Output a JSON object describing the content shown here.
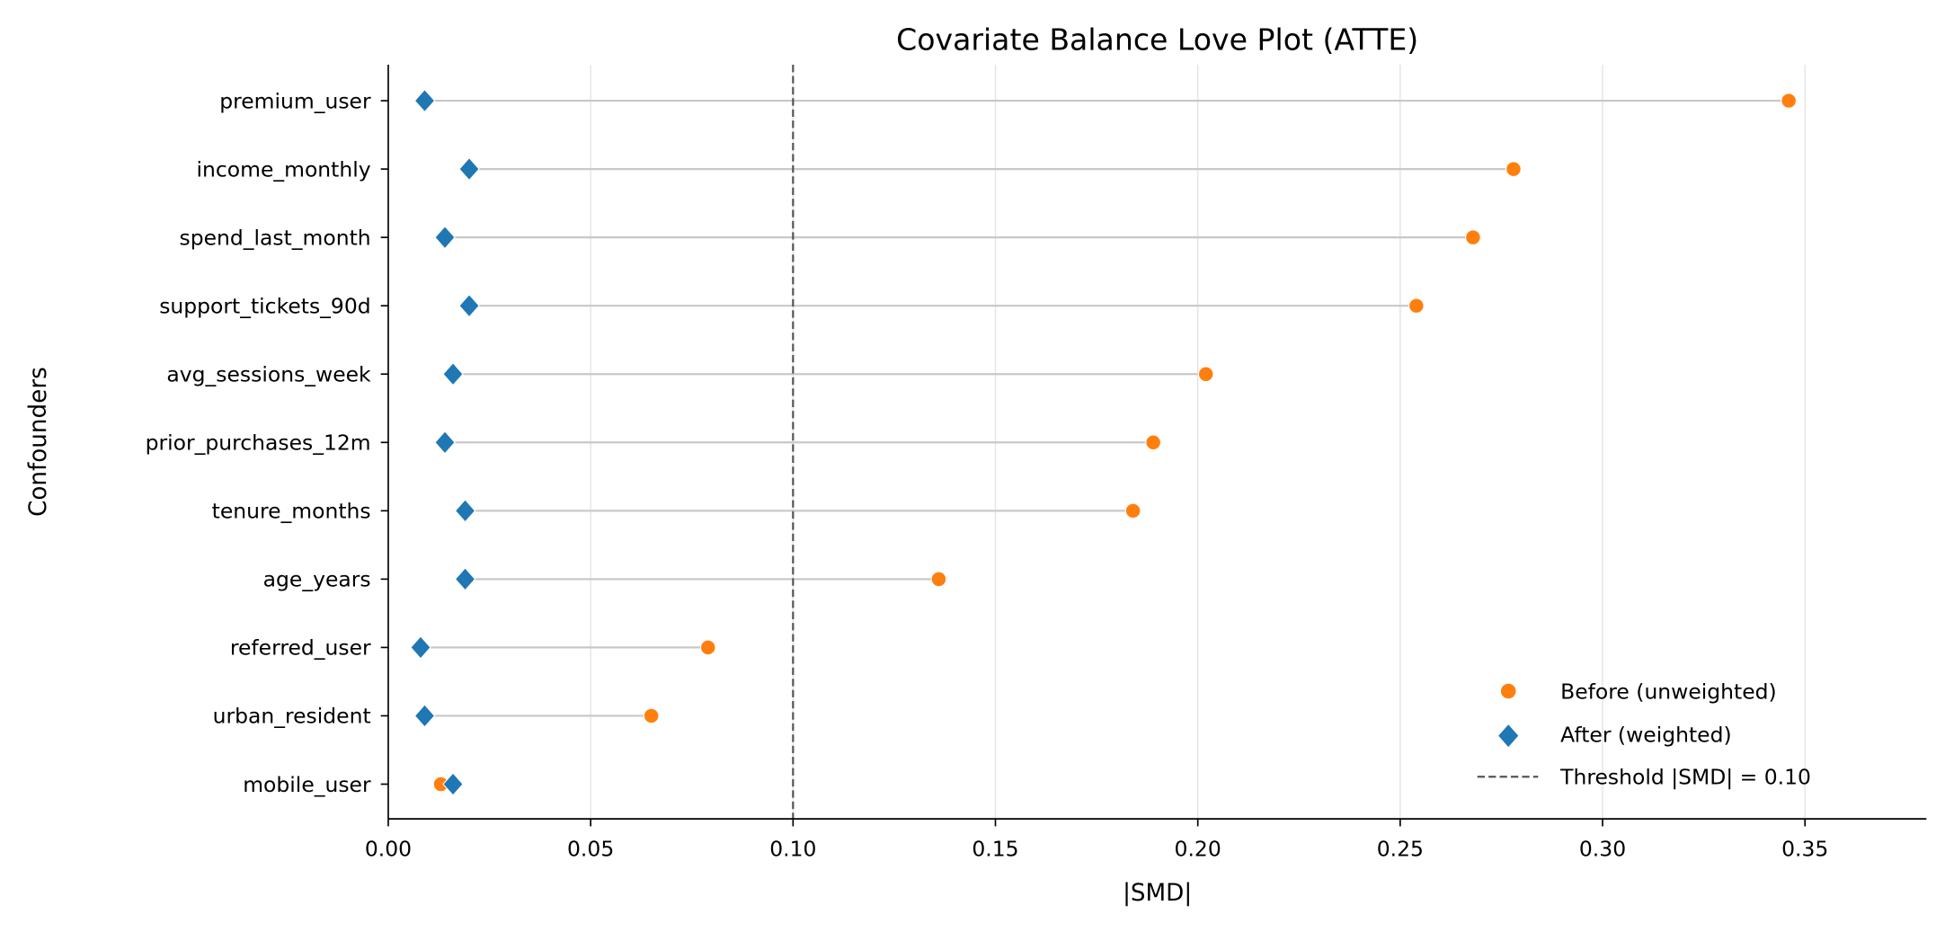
{
  "chart_data": {
    "type": "scatter",
    "subtype": "love-plot",
    "title": "Covariate Balance Love Plot (ATTE)",
    "xlabel": "|SMD|",
    "ylabel": "Confounders",
    "xlim": [
      0,
      0.38
    ],
    "xticks": [
      0.0,
      0.05,
      0.1,
      0.15,
      0.2,
      0.25,
      0.3,
      0.35
    ],
    "xtick_labels": [
      "0.00",
      "0.05",
      "0.10",
      "0.15",
      "0.20",
      "0.25",
      "0.30",
      "0.35"
    ],
    "grid": "x only",
    "categories": [
      "premium_user",
      "income_monthly",
      "spend_last_month",
      "support_tickets_90d",
      "avg_sessions_week",
      "prior_purchases_12m",
      "tenure_months",
      "age_years",
      "referred_user",
      "urban_resident",
      "mobile_user"
    ],
    "series": [
      {
        "name": "Before (unweighted)",
        "marker": "circle",
        "color": "#ff7f0e",
        "values": [
          0.346,
          0.278,
          0.268,
          0.254,
          0.202,
          0.189,
          0.184,
          0.136,
          0.079,
          0.065,
          0.013
        ]
      },
      {
        "name": "After (weighted)",
        "marker": "diamond",
        "color": "#1f77b4",
        "values": [
          0.009,
          0.02,
          0.014,
          0.02,
          0.016,
          0.014,
          0.019,
          0.019,
          0.008,
          0.009,
          0.016
        ]
      }
    ],
    "threshold": {
      "value": 0.1,
      "label": "Threshold |SMD| = 0.10",
      "color": "#555555"
    },
    "legend_position": "lower-right"
  }
}
